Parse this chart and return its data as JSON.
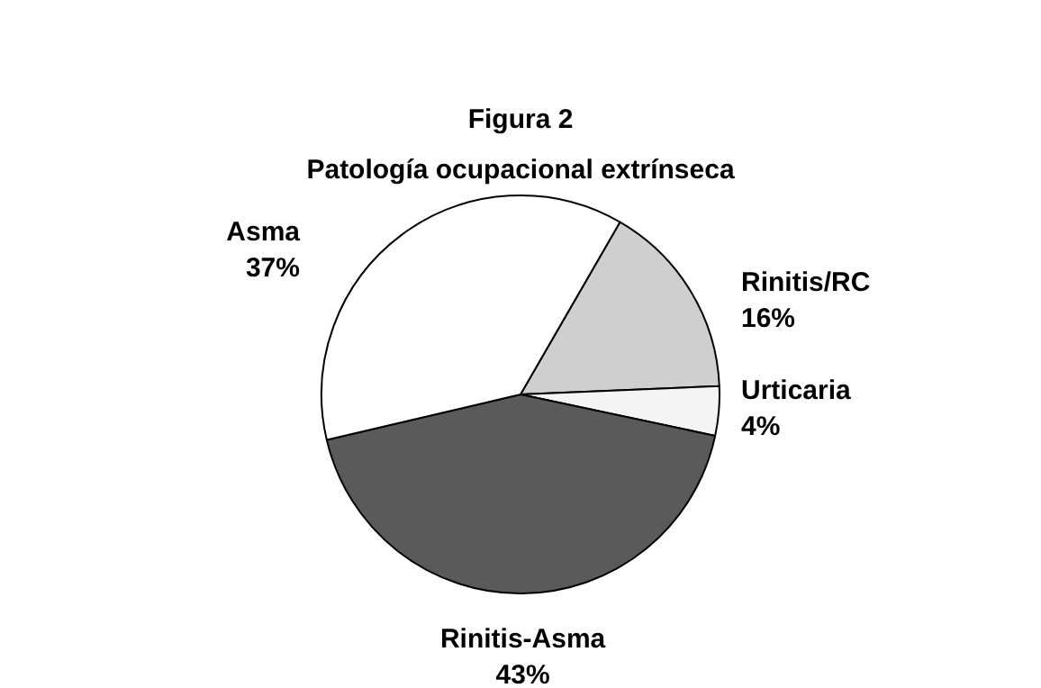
{
  "chart_data": {
    "type": "pie",
    "title": "Figura 2",
    "subtitle": "Patología ocupacional extrínseca",
    "categories": [
      "Rinitis/RC",
      "Urticaria",
      "Rinitis-Asma",
      "Asma"
    ],
    "values": [
      16,
      4,
      43,
      37
    ],
    "colors": [
      "#cfcfcf",
      "#f4f4f4",
      "#5a5a5a",
      "#ffffff"
    ],
    "value_labels": [
      "16%",
      "4%",
      "43%",
      "37%"
    ]
  }
}
